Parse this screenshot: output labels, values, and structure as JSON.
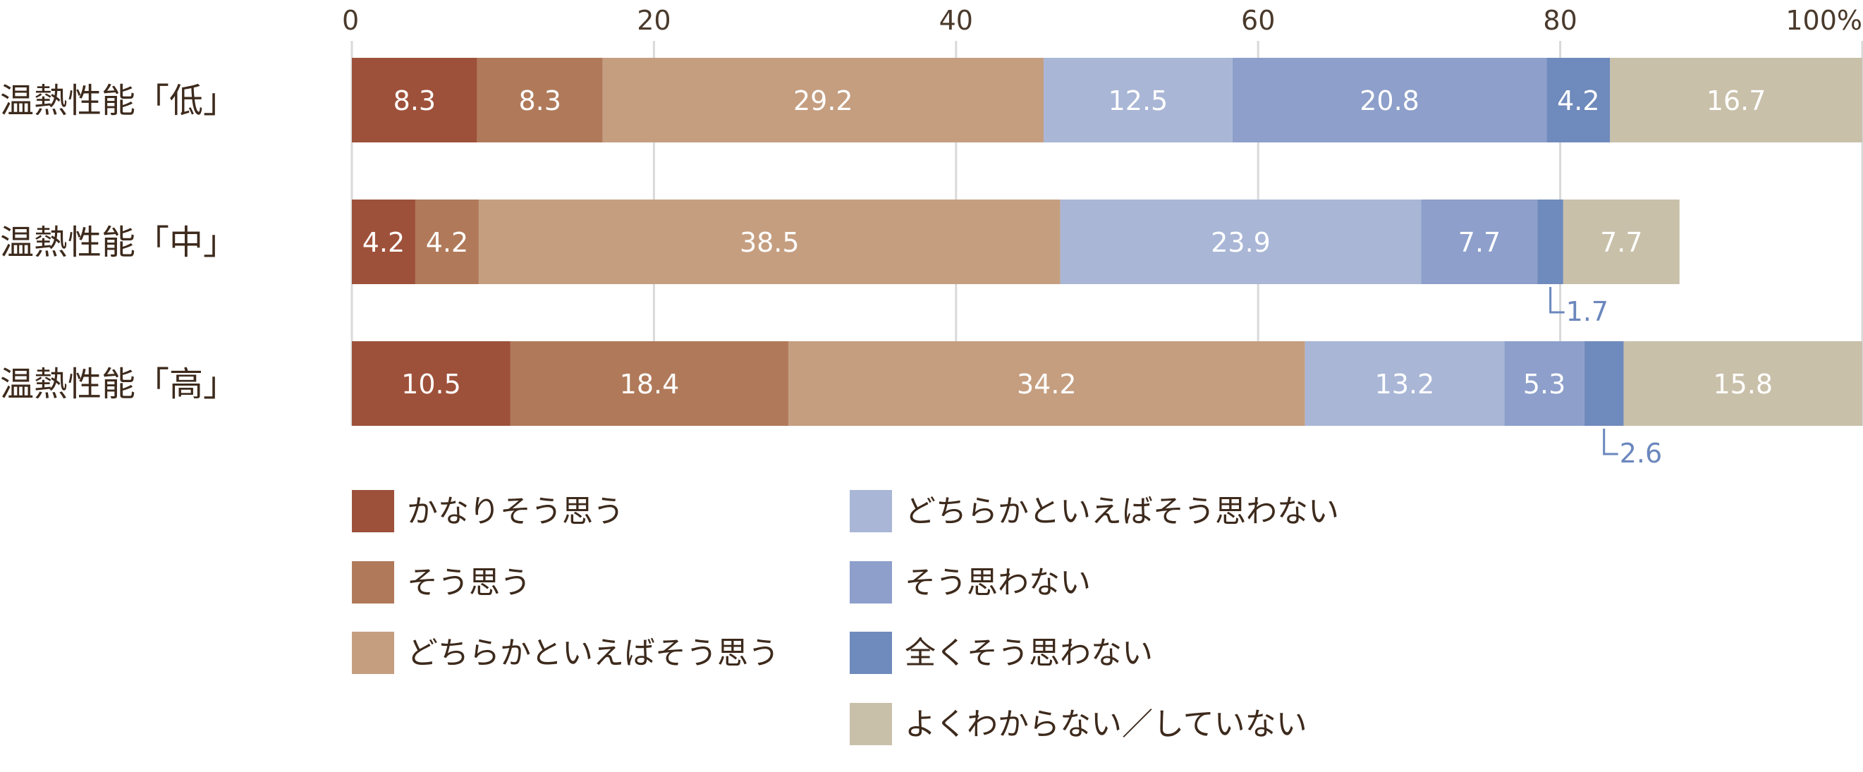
{
  "chart_data": {
    "type": "bar",
    "orientation": "horizontal",
    "stacked": true,
    "xlim": [
      0,
      100
    ],
    "x_ticks": [
      "0",
      "20",
      "40",
      "60",
      "80",
      "100%"
    ],
    "grid": true,
    "categories": [
      "温熱性能「低」",
      "温熱性能「中」",
      "温熱性能「高」"
    ],
    "series": [
      {
        "name": "かなりそう思う",
        "color": "#9e513a",
        "values": [
          8.3,
          4.2,
          10.5
        ]
      },
      {
        "name": "そう思う",
        "color": "#b07a5a",
        "values": [
          8.3,
          4.2,
          18.4
        ]
      },
      {
        "name": "どちらかといえばそう思う",
        "color": "#c59e80",
        "values": [
          29.2,
          38.5,
          34.2
        ]
      },
      {
        "name": "どちらかといえばそう思わない",
        "color": "#a9b6d6",
        "values": [
          12.5,
          23.9,
          13.2
        ]
      },
      {
        "name": "そう思わない",
        "color": "#8d9fca",
        "values": [
          20.8,
          7.7,
          5.3
        ]
      },
      {
        "name": "全くそう思わない",
        "color": "#6f8abc",
        "values": [
          4.2,
          1.7,
          2.6
        ]
      },
      {
        "name": "よくわからない／していない",
        "color": "#c9c0aa",
        "values": [
          16.7,
          7.7,
          15.8
        ]
      }
    ],
    "data_labels": [
      [
        "8.3",
        "8.3",
        "29.2",
        "12.5",
        "20.8",
        "4.2",
        "16.7"
      ],
      [
        "4.2",
        "4.2",
        "38.5",
        "23.9",
        "7.7",
        "",
        "7.7"
      ],
      [
        "10.5",
        "18.4",
        "34.2",
        "13.2",
        "5.3",
        "",
        "15.8"
      ]
    ],
    "callouts": [
      {
        "row": 1,
        "series": 5,
        "text": "1.7"
      },
      {
        "row": 2,
        "series": 5,
        "text": "2.6"
      }
    ],
    "legend_position": "bottom"
  }
}
